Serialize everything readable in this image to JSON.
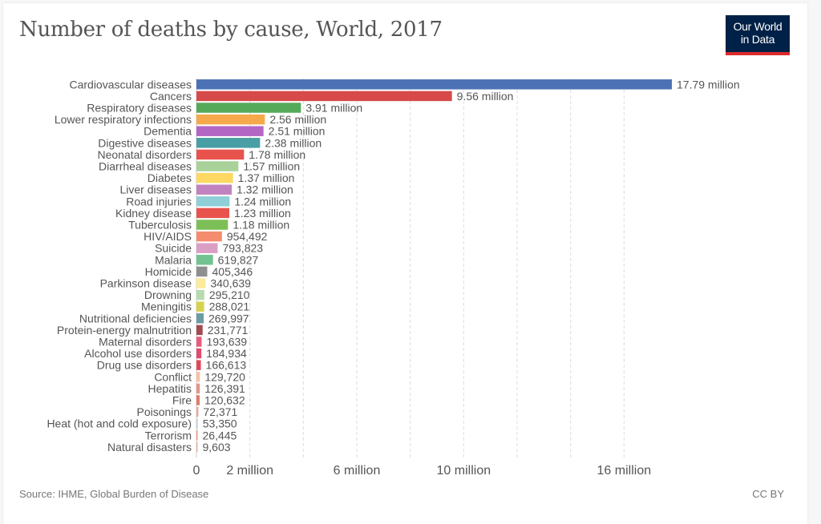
{
  "header": {
    "title": "Number of deaths by cause, World, 2017",
    "logo_line1": "Our World",
    "logo_line2": "in Data"
  },
  "footer": {
    "source": "Source: IHME, Global Burden of Disease",
    "license": "CC BY"
  },
  "chart_data": {
    "type": "bar",
    "orientation": "horizontal",
    "title": "Number of deaths by cause, World, 2017",
    "xlabel": "",
    "ylabel": "",
    "xlim": [
      0,
      17790000
    ],
    "grid": true,
    "x_ticks": [
      {
        "value": 0,
        "label": "0"
      },
      {
        "value": 2000000,
        "label": "2 million"
      },
      {
        "value": 6000000,
        "label": "6 million"
      },
      {
        "value": 10000000,
        "label": "10 million"
      },
      {
        "value": 16000000,
        "label": "16 million"
      }
    ],
    "gridlines": [
      2000000,
      4000000,
      6000000,
      8000000,
      10000000,
      12000000,
      14000000,
      16000000
    ],
    "categories": [
      "Cardiovascular diseases",
      "Cancers",
      "Respiratory diseases",
      "Lower respiratory infections",
      "Dementia",
      "Digestive diseases",
      "Neonatal disorders",
      "Diarrheal diseases",
      "Diabetes",
      "Liver diseases",
      "Road injuries",
      "Kidney disease",
      "Tuberculosis",
      "HIV/AIDS",
      "Suicide",
      "Malaria",
      "Homicide",
      "Parkinson disease",
      "Drowning",
      "Meningitis",
      "Nutritional deficiencies",
      "Protein-energy malnutrition",
      "Maternal disorders",
      "Alcohol use disorders",
      "Drug use disorders",
      "Conflict",
      "Hepatitis",
      "Fire",
      "Poisonings",
      "Heat (hot and cold exposure)",
      "Terrorism",
      "Natural disasters"
    ],
    "values": [
      17790000,
      9560000,
      3910000,
      2560000,
      2510000,
      2380000,
      1780000,
      1570000,
      1370000,
      1320000,
      1240000,
      1230000,
      1180000,
      954492,
      793823,
      619827,
      405346,
      340639,
      295210,
      288021,
      269997,
      231771,
      193639,
      184934,
      166613,
      129720,
      126391,
      120632,
      72371,
      53350,
      26445,
      9603
    ],
    "value_labels": [
      "17.79 million",
      "9.56 million",
      "3.91 million",
      "2.56 million",
      "2.51 million",
      "2.38 million",
      "1.78 million",
      "1.57 million",
      "1.37 million",
      "1.32 million",
      "1.24 million",
      "1.23 million",
      "1.18 million",
      "954,492",
      "793,823",
      "619,827",
      "405,346",
      "340,639",
      "295,210",
      "288,021",
      "269,997",
      "231,771",
      "193,639",
      "184,934",
      "166,613",
      "129,720",
      "126,391",
      "120,632",
      "72,371",
      "53,350",
      "26,445",
      "9,603"
    ],
    "colors": [
      "#4c72b5",
      "#d74a4a",
      "#55aa5a",
      "#f6a94b",
      "#b366c4",
      "#4a9ea5",
      "#e8534d",
      "#a9d29a",
      "#fdd862",
      "#c183bf",
      "#8ecfd8",
      "#e8534d",
      "#7dbf57",
      "#f48c6e",
      "#db9fc6",
      "#72c38f",
      "#8f8f8f",
      "#fdeb9c",
      "#b5dbae",
      "#d6d34d",
      "#6b9ba3",
      "#a24a52",
      "#e85b7a",
      "#e04a6e",
      "#e0485c",
      "#f7c3a0",
      "#e4958a",
      "#df7b6c",
      "#e9a79e",
      "#c8d0e8",
      "#e89a88",
      "#e8b4a0"
    ]
  }
}
